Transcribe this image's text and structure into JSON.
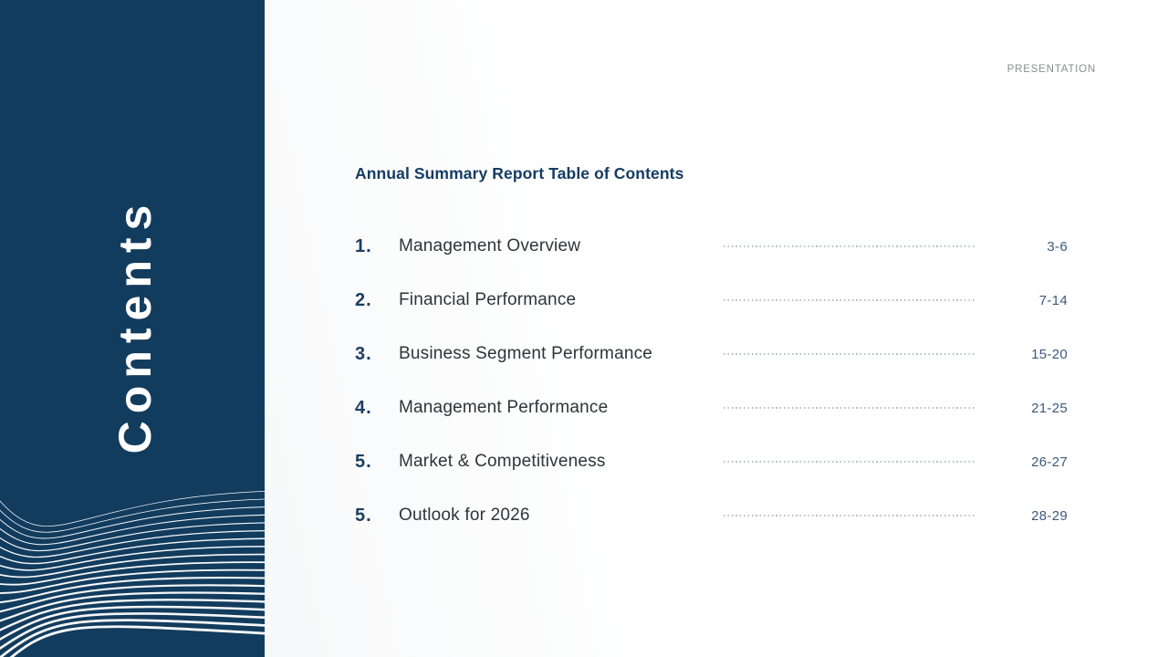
{
  "slide": {
    "eyebrow": "PRESENTATION",
    "sidebar_label": "Contents",
    "title": "Annual Summary Report Table of Contents"
  },
  "toc_items": [
    {
      "number": "1.",
      "label": "Management Overview",
      "pages": "3-6"
    },
    {
      "number": "2.",
      "label": "Financial Performance",
      "pages": "7-14"
    },
    {
      "number": "3.",
      "label": "Business Segment Performance",
      "pages": "15-20"
    },
    {
      "number": "4.",
      "label": "Management Performance",
      "pages": "21-25"
    },
    {
      "number": "5.",
      "label": "Market & Competitiveness",
      "pages": "26-27"
    },
    {
      "number": "5.",
      "label": "Outlook for 2026",
      "pages": "28-29"
    }
  ],
  "colors": {
    "sidebar_background": "#123C5E",
    "sidebar_text": "#FFFFFF",
    "wave_lines": "#FFFFFF",
    "eyebrow_text": "#8A8D91",
    "title_text": "#143C63",
    "item_number": "#1C3E61",
    "item_text": "#2F343A",
    "page_numbers": "#3E5A7E",
    "leader_dots": "#B5C1C8"
  }
}
